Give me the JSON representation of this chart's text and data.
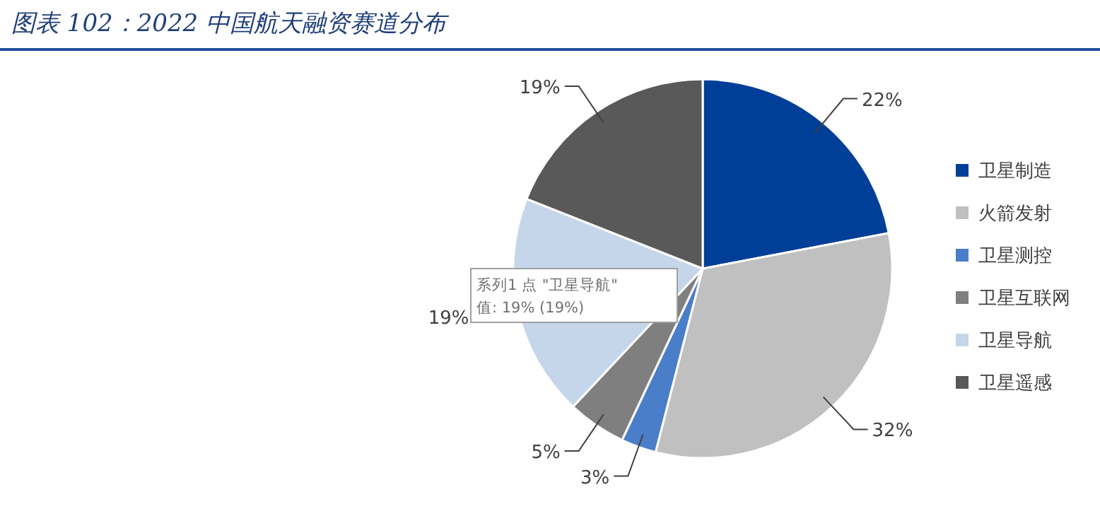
{
  "chart_data": {
    "type": "pie",
    "title": "图表 102：2022 中国航天融资赛道分布",
    "categories": [
      "卫星制造",
      "火箭发射",
      "卫星测控",
      "卫星互联网",
      "卫星导航",
      "卫星遥感"
    ],
    "values": [
      22,
      32,
      3,
      5,
      19,
      19
    ],
    "colors": [
      "#003f98",
      "#c0c0c0",
      "#4a7ec8",
      "#7f7f7f",
      "#c5d5ea",
      "#595959"
    ],
    "value_labels": [
      "22%",
      "32%",
      "3%",
      "5%",
      "19%",
      "19%"
    ],
    "legend": "right",
    "annotations": [
      "系列1 点 \"卫星导航\"",
      "值: 19% (19%)"
    ]
  }
}
